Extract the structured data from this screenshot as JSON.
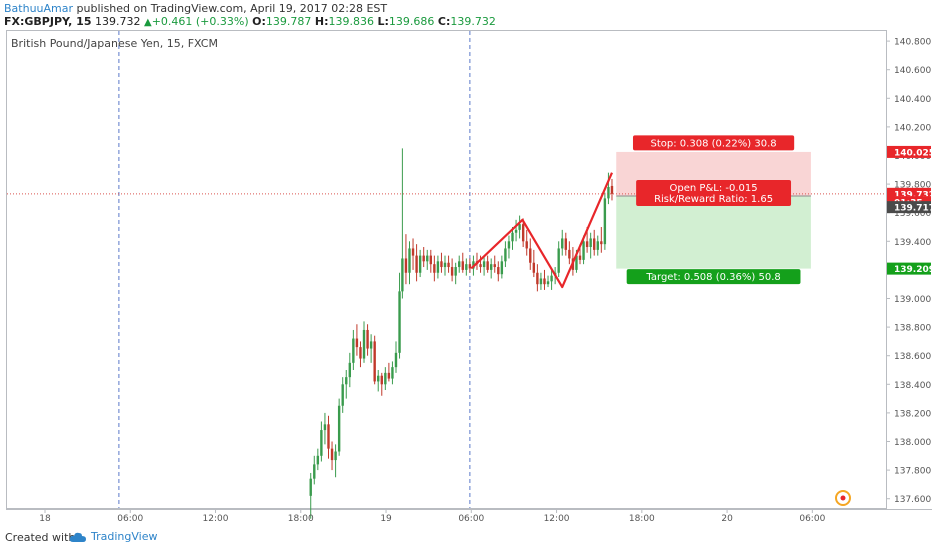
{
  "header": {
    "author": "BathuuAmar",
    "published_text": " published on TradingView.com, April 19, 2017 02:28 EST",
    "symbol": "FX:GBPJPY, 15",
    "last": "139.732",
    "change": "+0.461 (+0.33%)",
    "o_label": "O:",
    "o": "139.787",
    "h_label": "H:",
    "h": "139.836",
    "l_label": "L:",
    "l": "139.686",
    "c_label": "C:",
    "c": "139.732"
  },
  "chart_title": "British Pound/Japanese Yen, 15, FXCM",
  "footer": {
    "created_with": "Created with",
    "brand": "TradingView"
  },
  "colors": {
    "up": "#3a9b4d",
    "down": "#c0392b",
    "stop_zone": "#f9d5d5",
    "target_zone": "#d2efd2",
    "stop_badge": "#e8262a",
    "target_badge": "#14a01b",
    "price_line": "#d9534f",
    "vline": "#5b79c9"
  },
  "chart_data": {
    "type": "candlestick",
    "title": "British Pound/Japanese Yen, 15, FXCM",
    "symbol": "GBPJPY",
    "interval": "15",
    "ylim": [
      137.52,
      140.9
    ],
    "y_ticks": [
      "140.800",
      "140.600",
      "140.400",
      "140.200",
      "140.000",
      "139.800",
      "139.600",
      "139.400",
      "139.200",
      "139.000",
      "138.800",
      "138.600",
      "138.400",
      "138.200",
      "138.000",
      "137.800",
      "137.600"
    ],
    "x_ticks": [
      {
        "label": "18",
        "hour": 0
      },
      {
        "label": "06:00",
        "hour": 6
      },
      {
        "label": "12:00",
        "hour": 12
      },
      {
        "label": "18:00",
        "hour": 18
      },
      {
        "label": "19",
        "hour": 24
      },
      {
        "label": "06:00",
        "hour": 30
      },
      {
        "label": "12:00",
        "hour": 36
      },
      {
        "label": "18:00",
        "hour": 42
      },
      {
        "label": "20",
        "hour": 48
      },
      {
        "label": "06:00",
        "hour": 54
      }
    ],
    "vertical_markers_hours": [
      5.2,
      29.9
    ],
    "current_price": 139.732,
    "price_labels": [
      {
        "text": "140.025",
        "role": "stop"
      },
      {
        "text": "139.732",
        "role": "last"
      },
      {
        "text": "01:35",
        "role": "countdown"
      },
      {
        "text": "139.717",
        "role": "entry"
      },
      {
        "text": "139.209",
        "role": "target"
      }
    ],
    "position": {
      "entry": 139.717,
      "stop": 140.025,
      "target": 139.209,
      "start_hour": 40.2,
      "end_hour": 53.9,
      "stop_text": "Stop: 0.308 (0.22%) 30.8",
      "target_text": "Target: 0.508 (0.36%) 50.8",
      "pnl_text": "Open P&L: -0.015",
      "rr_text": "Risk/Reward Ratio: 1.65"
    },
    "drawing_line": [
      [
        30.0,
        139.21
      ],
      [
        33.6,
        139.55
      ],
      [
        36.4,
        139.08
      ],
      [
        39.9,
        139.88
      ]
    ],
    "candles": [
      [
        18.7,
        137.62,
        137.78,
        137.46,
        137.74
      ],
      [
        18.95,
        137.74,
        137.9,
        137.7,
        137.84
      ],
      [
        19.2,
        137.84,
        137.95,
        137.8,
        137.9
      ],
      [
        19.45,
        137.9,
        138.14,
        137.86,
        138.08
      ],
      [
        19.7,
        138.08,
        138.2,
        137.98,
        138.12
      ],
      [
        19.95,
        138.12,
        138.18,
        137.88,
        137.95
      ],
      [
        20.2,
        137.95,
        138.0,
        137.8,
        137.87
      ],
      [
        20.45,
        137.87,
        137.98,
        137.75,
        137.93
      ],
      [
        20.7,
        137.93,
        138.3,
        137.9,
        138.25
      ],
      [
        20.95,
        138.25,
        138.45,
        138.2,
        138.4
      ],
      [
        21.2,
        138.4,
        138.5,
        138.3,
        138.45
      ],
      [
        21.45,
        138.45,
        138.62,
        138.38,
        138.55
      ],
      [
        21.7,
        138.55,
        138.78,
        138.5,
        138.72
      ],
      [
        21.95,
        138.72,
        138.82,
        138.6,
        138.66
      ],
      [
        22.2,
        138.66,
        138.7,
        138.52,
        138.58
      ],
      [
        22.45,
        138.58,
        138.84,
        138.55,
        138.78
      ],
      [
        22.7,
        138.78,
        138.82,
        138.6,
        138.65
      ],
      [
        22.95,
        138.65,
        138.75,
        138.55,
        138.7
      ],
      [
        23.2,
        138.7,
        138.74,
        138.4,
        138.42
      ],
      [
        23.45,
        138.42,
        138.5,
        138.35,
        138.46
      ],
      [
        23.7,
        138.46,
        138.48,
        138.32,
        138.4
      ],
      [
        23.95,
        138.4,
        138.52,
        138.36,
        138.48
      ],
      [
        24.2,
        138.48,
        138.55,
        138.42,
        138.44
      ],
      [
        24.45,
        138.44,
        138.56,
        138.4,
        138.52
      ],
      [
        24.7,
        138.52,
        138.7,
        138.48,
        138.62
      ],
      [
        24.95,
        138.62,
        139.18,
        138.58,
        139.05
      ],
      [
        25.15,
        139.05,
        140.05,
        139.0,
        139.28
      ],
      [
        25.4,
        139.28,
        139.45,
        139.1,
        139.18
      ],
      [
        25.65,
        139.18,
        139.4,
        139.1,
        139.35
      ],
      [
        25.9,
        139.35,
        139.42,
        139.2,
        139.3
      ],
      [
        26.15,
        139.3,
        139.38,
        139.12,
        139.18
      ],
      [
        26.4,
        139.18,
        139.34,
        139.15,
        139.3
      ],
      [
        26.65,
        139.3,
        139.36,
        139.22,
        139.26
      ],
      [
        26.9,
        139.26,
        139.34,
        139.2,
        139.3
      ],
      [
        27.15,
        139.3,
        139.34,
        139.18,
        139.24
      ],
      [
        27.4,
        139.24,
        139.3,
        139.12,
        139.18
      ],
      [
        27.65,
        139.18,
        139.3,
        139.14,
        139.26
      ],
      [
        27.9,
        139.26,
        139.32,
        139.18,
        139.22
      ],
      [
        28.15,
        139.22,
        139.3,
        139.16,
        139.25
      ],
      [
        28.4,
        139.25,
        139.3,
        139.18,
        139.22
      ],
      [
        28.65,
        139.22,
        139.28,
        139.12,
        139.16
      ],
      [
        28.9,
        139.16,
        139.25,
        139.1,
        139.22
      ],
      [
        29.15,
        139.22,
        139.3,
        139.18,
        139.26
      ],
      [
        29.4,
        139.26,
        139.32,
        139.18,
        139.2
      ],
      [
        29.65,
        139.2,
        139.28,
        139.16,
        139.24
      ],
      [
        29.9,
        139.24,
        139.28,
        139.18,
        139.21
      ],
      [
        30.15,
        139.21,
        139.3,
        139.16,
        139.26
      ],
      [
        30.4,
        139.26,
        139.32,
        139.2,
        139.24
      ],
      [
        30.65,
        139.24,
        139.3,
        139.18,
        139.22
      ],
      [
        30.9,
        139.22,
        139.3,
        139.16,
        139.26
      ],
      [
        31.15,
        139.26,
        139.3,
        139.18,
        139.2
      ],
      [
        31.4,
        139.2,
        139.28,
        139.14,
        139.24
      ],
      [
        31.65,
        139.24,
        139.3,
        139.18,
        139.22
      ],
      [
        31.9,
        139.22,
        139.26,
        139.12,
        139.17
      ],
      [
        32.15,
        139.17,
        139.3,
        139.14,
        139.26
      ],
      [
        32.4,
        139.26,
        139.4,
        139.22,
        139.35
      ],
      [
        32.65,
        139.35,
        139.44,
        139.28,
        139.4
      ],
      [
        32.9,
        139.4,
        139.5,
        139.34,
        139.46
      ],
      [
        33.15,
        139.46,
        139.55,
        139.4,
        139.48
      ],
      [
        33.4,
        139.48,
        139.58,
        139.42,
        139.52
      ],
      [
        33.65,
        139.52,
        139.56,
        139.36,
        139.4
      ],
      [
        33.9,
        139.4,
        139.48,
        139.3,
        139.35
      ],
      [
        34.15,
        139.35,
        139.42,
        139.2,
        139.25
      ],
      [
        34.4,
        139.25,
        139.34,
        139.15,
        139.18
      ],
      [
        34.65,
        139.18,
        139.24,
        139.05,
        139.1
      ],
      [
        34.9,
        139.1,
        139.18,
        139.06,
        139.14
      ],
      [
        35.15,
        139.14,
        139.2,
        139.06,
        139.1
      ],
      [
        35.4,
        139.1,
        139.16,
        139.08,
        139.12
      ],
      [
        35.65,
        139.12,
        139.2,
        139.06,
        139.16
      ],
      [
        35.9,
        139.16,
        139.22,
        139.1,
        139.18
      ],
      [
        36.15,
        139.18,
        139.4,
        139.15,
        139.35
      ],
      [
        36.4,
        139.35,
        139.48,
        139.3,
        139.42
      ],
      [
        36.65,
        139.42,
        139.46,
        139.3,
        139.34
      ],
      [
        36.9,
        139.34,
        139.4,
        139.24,
        139.28
      ],
      [
        37.15,
        139.28,
        139.36,
        139.16,
        139.2
      ],
      [
        37.4,
        139.2,
        139.34,
        139.18,
        139.3
      ],
      [
        37.65,
        139.3,
        139.38,
        139.24,
        139.27
      ],
      [
        37.9,
        139.27,
        139.44,
        139.24,
        139.4
      ],
      [
        38.15,
        139.4,
        139.5,
        139.32,
        139.36
      ],
      [
        38.4,
        139.36,
        139.46,
        139.28,
        139.42
      ],
      [
        38.65,
        139.42,
        139.48,
        139.3,
        139.34
      ],
      [
        38.9,
        139.34,
        139.44,
        139.3,
        139.4
      ],
      [
        39.15,
        139.4,
        139.5,
        139.32,
        139.38
      ],
      [
        39.4,
        139.38,
        139.74,
        139.34,
        139.7
      ],
      [
        39.65,
        139.7,
        139.88,
        139.66,
        139.78
      ],
      [
        39.9,
        139.787,
        139.836,
        139.686,
        139.732
      ]
    ]
  }
}
